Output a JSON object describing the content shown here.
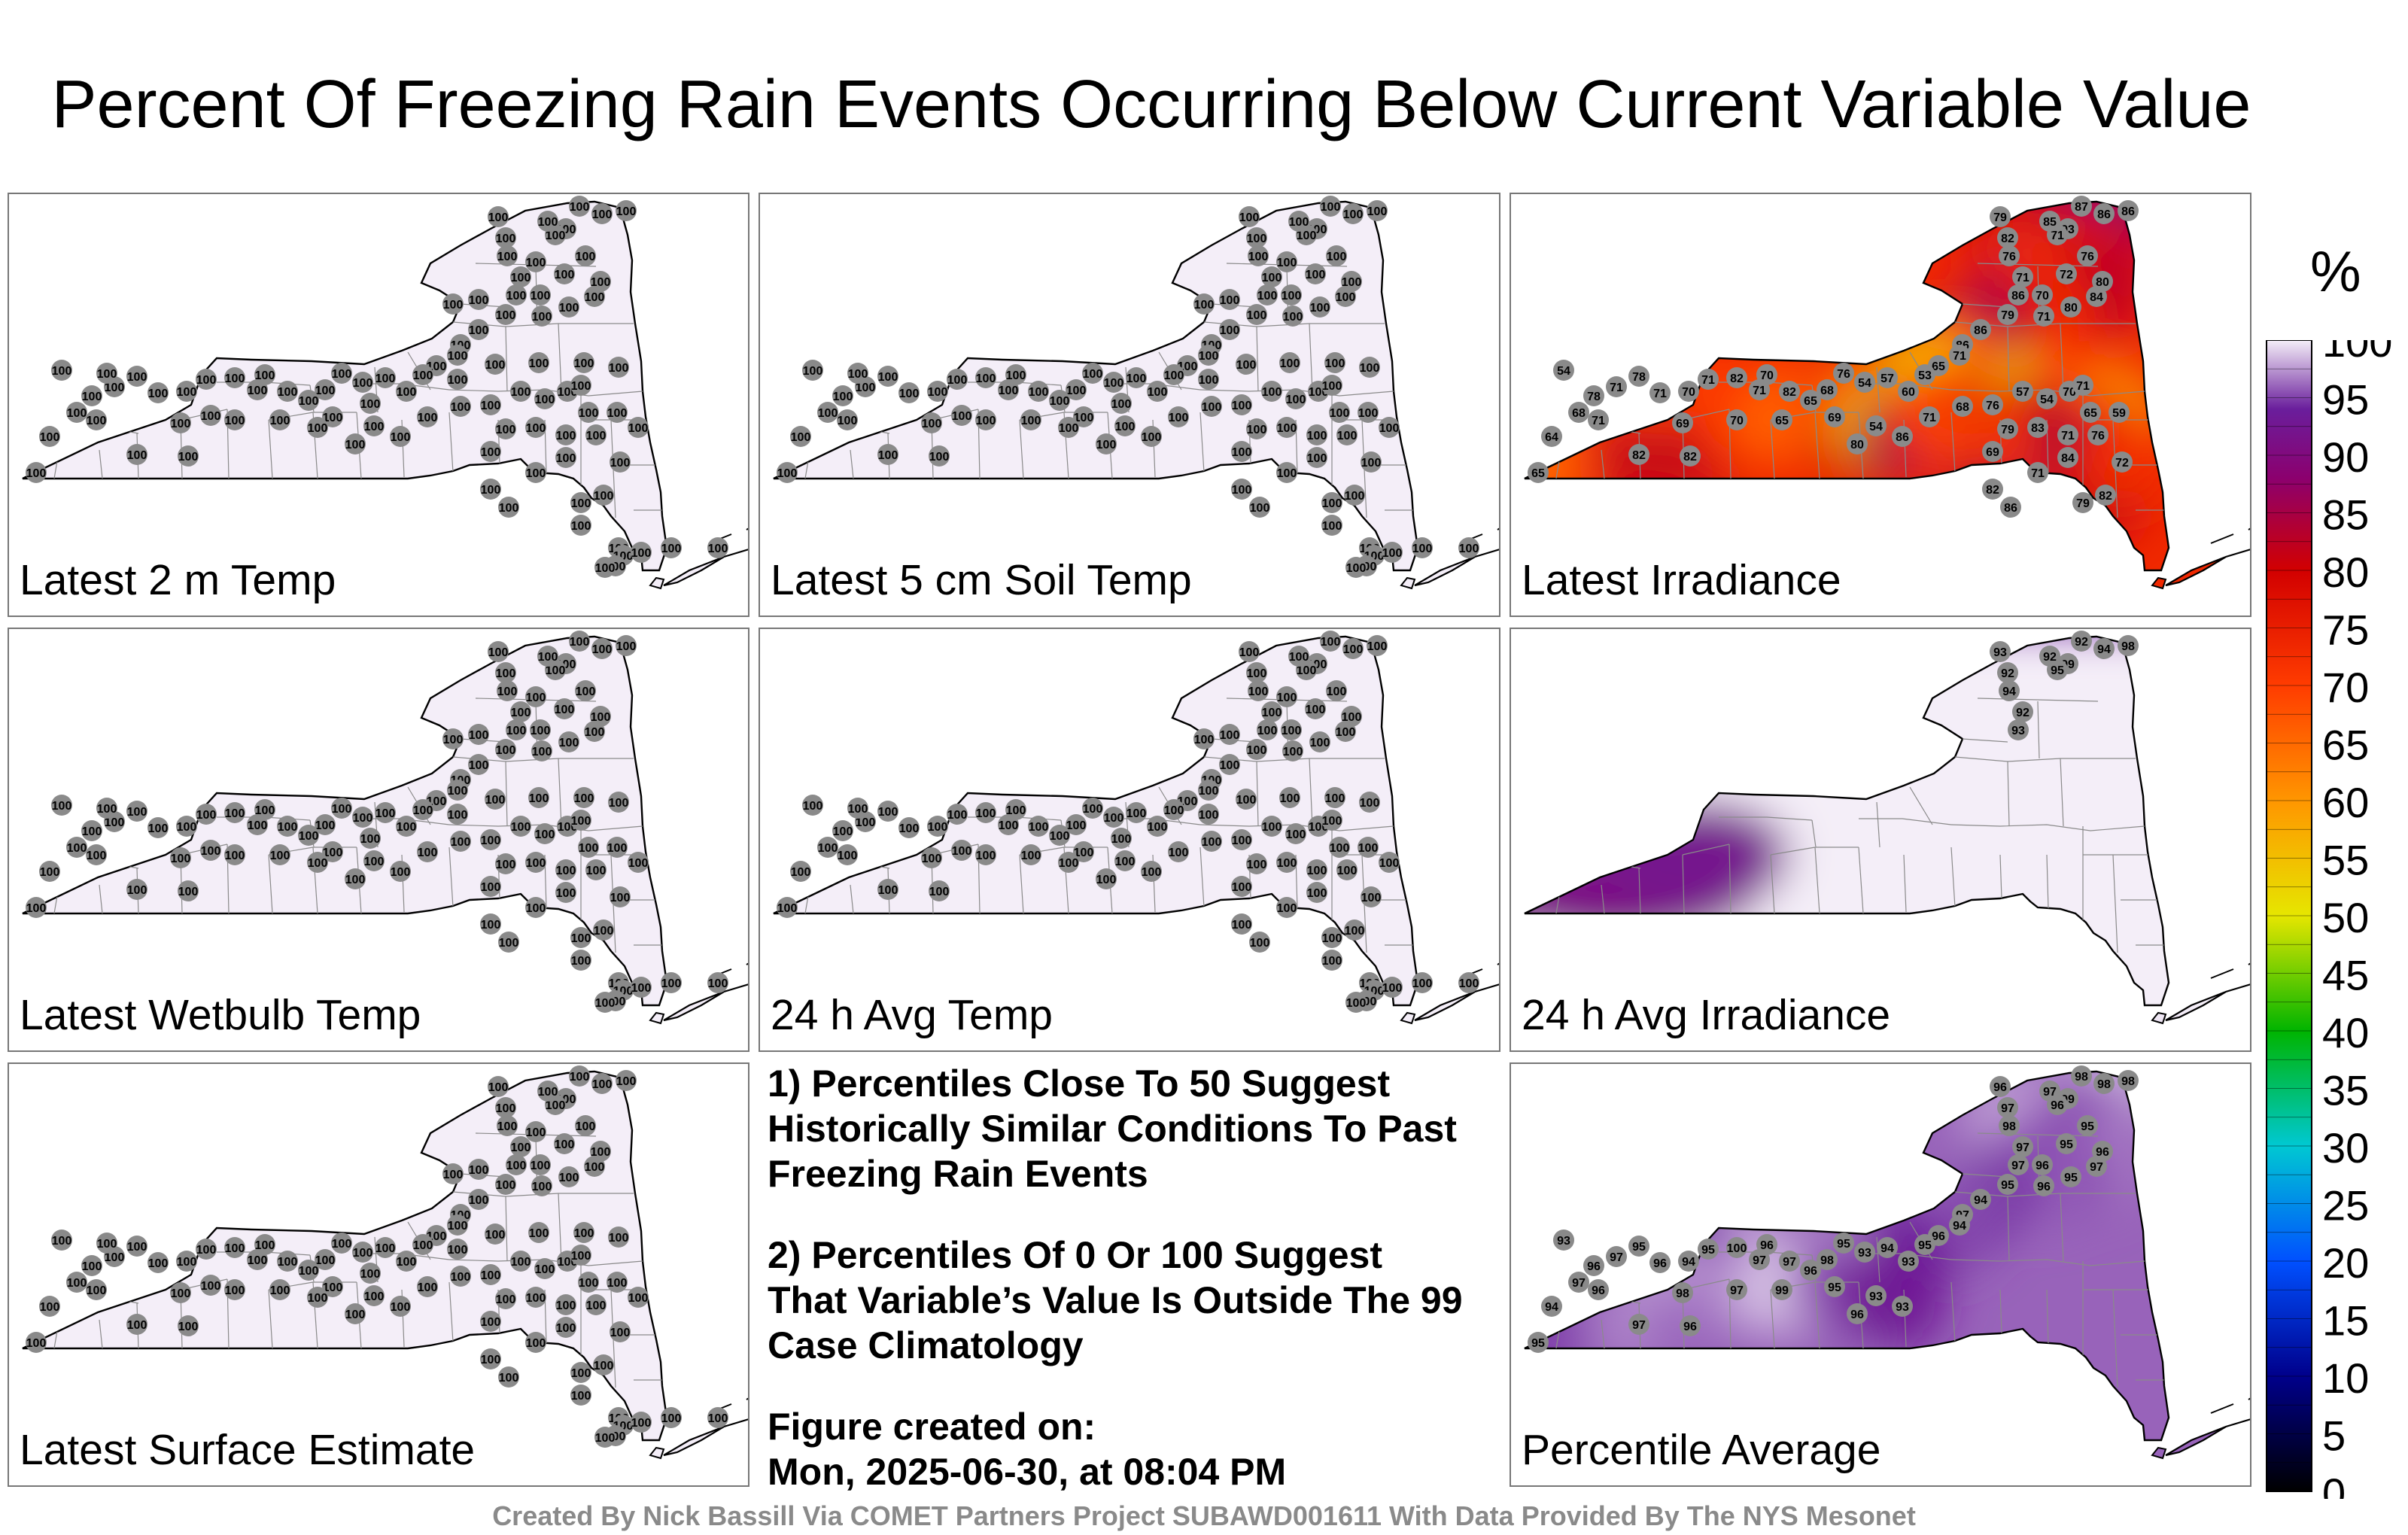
{
  "title": "Percent Of Freezing Rain Events Occurring Below Current Variable Value",
  "panels": [
    {
      "label": "Latest 2 m Temp",
      "fill": "uniform",
      "value": 100
    },
    {
      "label": "Latest 5 cm Soil Temp",
      "fill": "uniform",
      "value": 100
    },
    {
      "label": "Latest Irradiance",
      "fill": "irradiance",
      "values": [
        86,
        86,
        87,
        93,
        71,
        85,
        79,
        82,
        76,
        71,
        86,
        70,
        72,
        76,
        80,
        84,
        80,
        71,
        79,
        86,
        86,
        71,
        65,
        53,
        60,
        57,
        54,
        76,
        68,
        65,
        82,
        70,
        82,
        71,
        70,
        71,
        78,
        71,
        78,
        68,
        54,
        64,
        65,
        71,
        82,
        69,
        82,
        70,
        71,
        65,
        69,
        80,
        54,
        86,
        71,
        68,
        76,
        57,
        54,
        70,
        71,
        65,
        59,
        76,
        71,
        83,
        79,
        69,
        82,
        86,
        71,
        84,
        79,
        82,
        72
      ]
    },
    {
      "label": "Latest Wetbulb Temp",
      "fill": "uniform",
      "value": 100
    },
    {
      "label": "24 h Avg Temp",
      "fill": "uniform",
      "value": 100
    },
    {
      "label": "24 h Avg Irradiance",
      "fill": "avg_irradiance",
      "values": [
        98,
        94,
        92,
        99,
        95,
        92,
        93,
        92,
        94,
        92,
        93
      ]
    },
    {
      "label": "Latest Surface Estimate",
      "fill": "uniform",
      "value": 100
    },
    {
      "label": "Percentile Average",
      "fill": "average",
      "values": [
        98,
        98,
        98,
        99,
        96,
        97,
        96,
        97,
        98,
        97,
        97,
        96,
        95,
        95,
        96,
        97,
        95,
        96,
        95,
        94,
        97,
        94,
        96,
        95,
        93,
        94,
        93,
        95,
        98,
        96,
        97,
        96,
        100,
        95,
        94,
        96,
        95,
        97,
        96,
        97,
        93,
        94,
        95,
        96,
        97,
        98,
        96,
        97,
        97,
        99,
        95,
        96,
        93,
        93
      ]
    }
  ],
  "notes": [
    "1) Percentiles Close To 50 Suggest Historically Similar Conditions To Past Freezing Rain Events",
    "2) Percentiles Of 0 Or 100 Suggest That Variable’s Value Is Outside The 99 Case Climatology"
  ],
  "figure_created_label": "Figure created on:",
  "figure_created_value": "Mon, 2025-06-30, at 08:04 PM",
  "colorbar": {
    "unit": "%",
    "ticks": [
      100,
      95,
      90,
      85,
      80,
      75,
      70,
      65,
      60,
      55,
      50,
      45,
      40,
      35,
      30,
      25,
      20,
      15,
      10,
      5,
      0
    ],
    "colors": {
      "p0": "#000000",
      "p10": "#00008b",
      "p20": "#0050ff",
      "p30": "#00c8d2",
      "p40": "#00b400",
      "p50": "#e6e600",
      "p60": "#ff9600",
      "p70": "#ff3c00",
      "p80": "#d20000",
      "p88": "#8c006e",
      "p94": "#6a1e9c",
      "p100": "#f4eef8"
    }
  },
  "credit": "Created By Nick Bassill Via COMET Partners Project SUBAWD001611 With Data Provided By The NYS Mesonet"
}
